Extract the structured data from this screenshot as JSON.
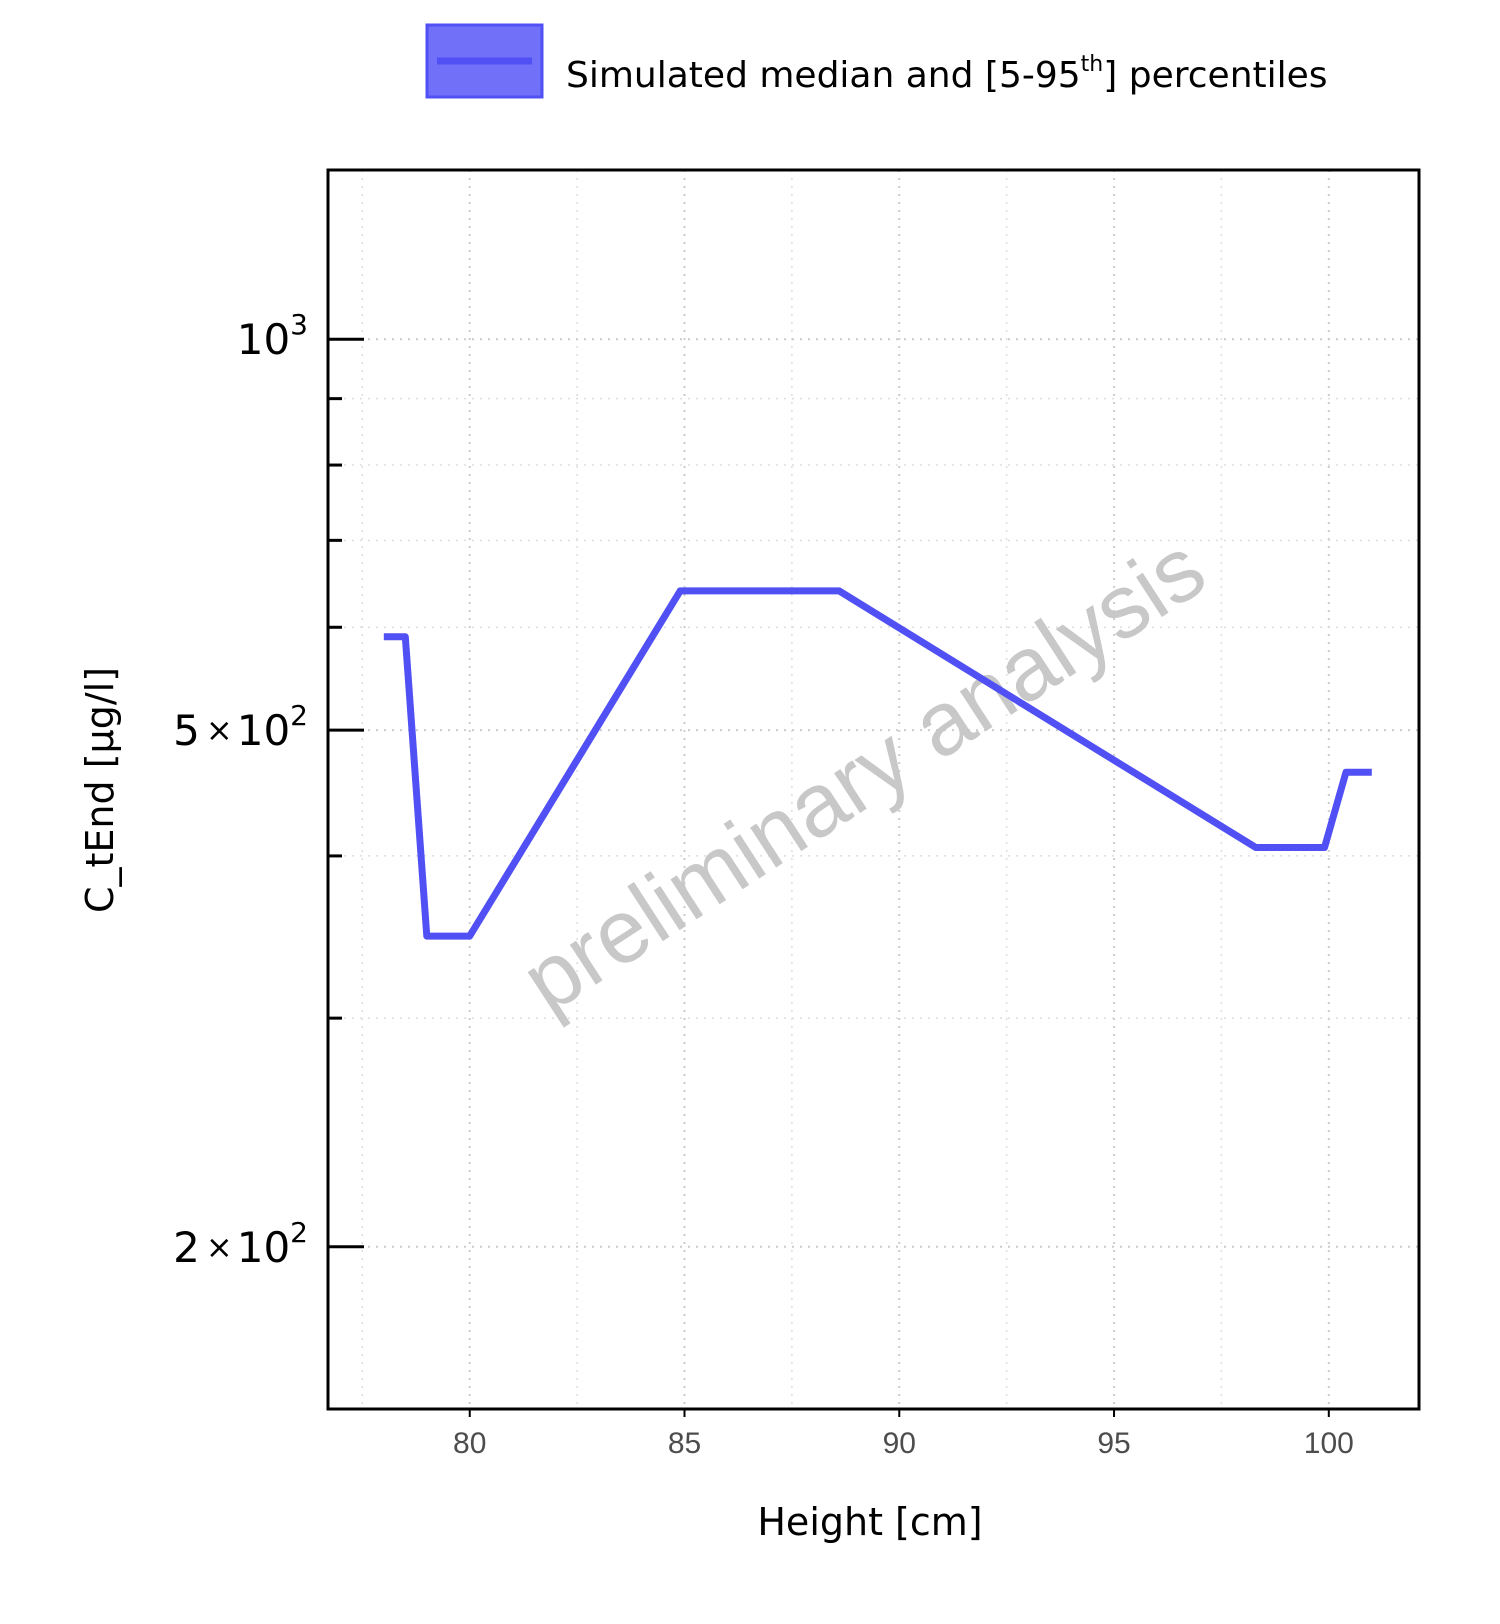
{
  "legend": {
    "label_main": "Simulated median and [5-95",
    "label_sup": "th",
    "label_end": "] percentiles"
  },
  "watermark": "preliminary analysis",
  "colors": {
    "series": "#5050f5",
    "legend_fill": "#7070f8",
    "grid": "#cccccc",
    "axis": "#000000",
    "watermark": "#c8c8c8"
  },
  "chart_data": {
    "type": "line",
    "xlabel": "Height [cm]",
    "ylabel": "C_tEnd [µg/l]",
    "xlim": [
      76.7,
      102.1
    ],
    "ylim": [
      150,
      1350
    ],
    "y_scale": "log",
    "grid": true,
    "legend_position": "top",
    "x_ticks": [
      {
        "value": 80,
        "label": "80"
      },
      {
        "value": 85,
        "label": "85"
      },
      {
        "value": 90,
        "label": "90"
      },
      {
        "value": 95,
        "label": "95"
      },
      {
        "value": 100,
        "label": "100"
      }
    ],
    "x_minor_ticks": [
      77.5,
      82.5,
      87.5,
      92.5,
      97.5
    ],
    "y_major_ticks": [
      {
        "value": 200,
        "mantissa": "2",
        "times": "×",
        "base": "10",
        "exp": "2"
      },
      {
        "value": 500,
        "mantissa": "5",
        "times": "×",
        "base": "10",
        "exp": "2"
      },
      {
        "value": 1000,
        "mantissa": "",
        "times": "",
        "base": "10",
        "exp": "3"
      }
    ],
    "y_minor_ticks": [
      300,
      400,
      600,
      700,
      800,
      900
    ],
    "series": [
      {
        "name": "Simulated median and [5-95th] percentiles",
        "x": [
          78.0,
          78.5,
          79.0,
          80.0,
          84.9,
          88.6,
          98.3,
          99.9,
          100.4,
          101.0
        ],
        "y": [
          590,
          590,
          347,
          347,
          640,
          640,
          406,
          406,
          464,
          464
        ]
      }
    ]
  }
}
